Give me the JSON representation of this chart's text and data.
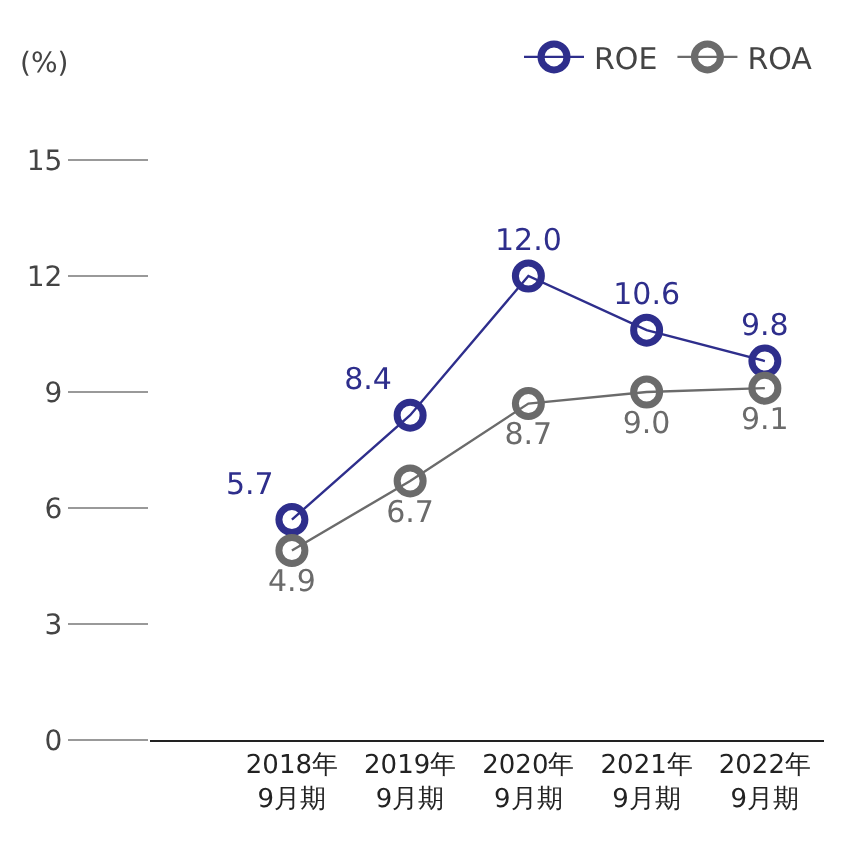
{
  "chart_data": {
    "type": "line",
    "ylabel": "(%)",
    "categories": [
      "2018年\n9月期",
      "2019年\n9月期",
      "2020年\n9月期",
      "2021年\n9月期",
      "2022年\n9月期"
    ],
    "series": [
      {
        "name": "ROE",
        "color": "#2e2e8c",
        "values": [
          5.7,
          8.4,
          12.0,
          10.6,
          9.8
        ],
        "value_labels": [
          "5.7",
          "8.4",
          "12.0",
          "10.6",
          "9.8"
        ]
      },
      {
        "name": "ROA",
        "color": "#6b6b6b",
        "values": [
          4.9,
          6.7,
          8.7,
          9.0,
          9.1
        ],
        "value_labels": [
          "4.9",
          "6.7",
          "8.7",
          "9.0",
          "9.1"
        ]
      }
    ],
    "ylim": [
      0,
      15
    ],
    "yticks": [
      0,
      3,
      6,
      9,
      12,
      15
    ],
    "marker": "circle",
    "legend": "top right",
    "grid": false
  }
}
